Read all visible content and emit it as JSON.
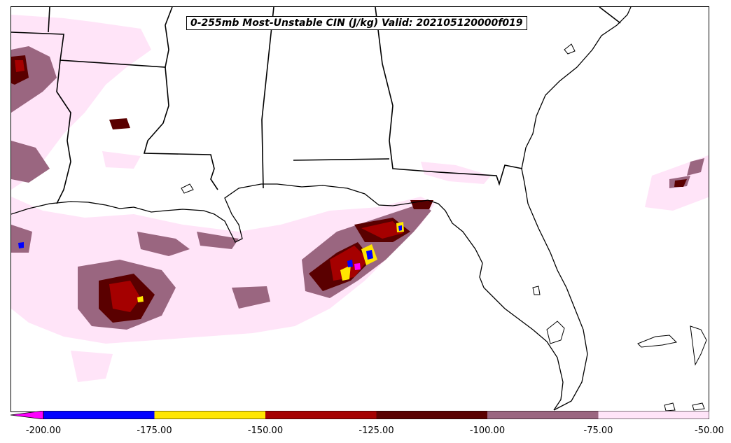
{
  "title": "0-255mb Most-Unstable CIN (J/kg) Valid: 202105120000f019",
  "colorbar": {
    "ticks": [
      "-200.00",
      "-175.00",
      "-150.00",
      "-125.00",
      "-100.00",
      "-75.00",
      "-50.00"
    ],
    "range": [
      -200,
      -50
    ],
    "extend": "min",
    "extend_color": "#ff00ff",
    "colors": [
      "#0000ff",
      "#ffe600",
      "#a50000",
      "#5a0000",
      "#9a6680",
      "#ffe4f8"
    ]
  },
  "map": {
    "region": "US Gulf Coast / Southeast",
    "field_colors": {
      "very_light": "#ffe4f8",
      "mauve": "#9a6680",
      "dark_red": "#5a0000",
      "red": "#a50000",
      "yellow": "#ffe600",
      "blue": "#0000ff",
      "magenta": "#ff00ff"
    }
  }
}
